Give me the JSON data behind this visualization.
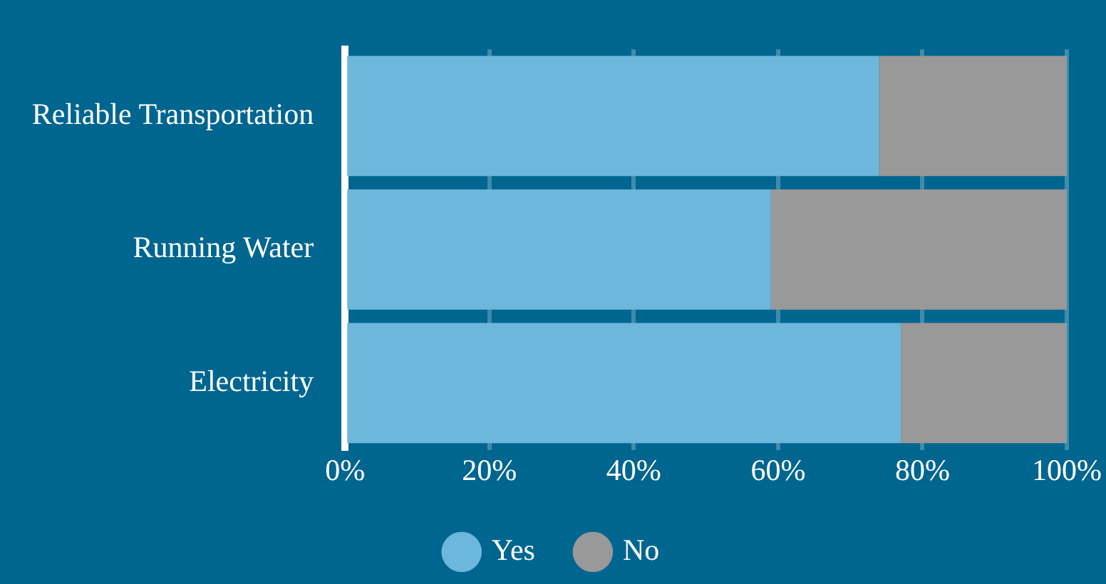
{
  "chart_data": {
    "type": "bar",
    "orientation": "horizontal",
    "stacked": true,
    "categories": [
      "Reliable Transportation",
      "Running Water",
      "Electricity"
    ],
    "series": [
      {
        "name": "Yes",
        "color": "#6db7dc",
        "values": [
          74,
          59,
          77
        ]
      },
      {
        "name": "No",
        "color": "#999999",
        "values": [
          26,
          41,
          23
        ]
      }
    ],
    "xlim": [
      0,
      100
    ],
    "xticks": [
      {
        "value": 0,
        "label": "0%"
      },
      {
        "value": 20,
        "label": "20%"
      },
      {
        "value": 40,
        "label": "40%"
      },
      {
        "value": 60,
        "label": "60%"
      },
      {
        "value": 80,
        "label": "80%"
      },
      {
        "value": 100,
        "label": "100%"
      }
    ],
    "grid": "x",
    "legend": "bottom",
    "marker": "circle"
  }
}
